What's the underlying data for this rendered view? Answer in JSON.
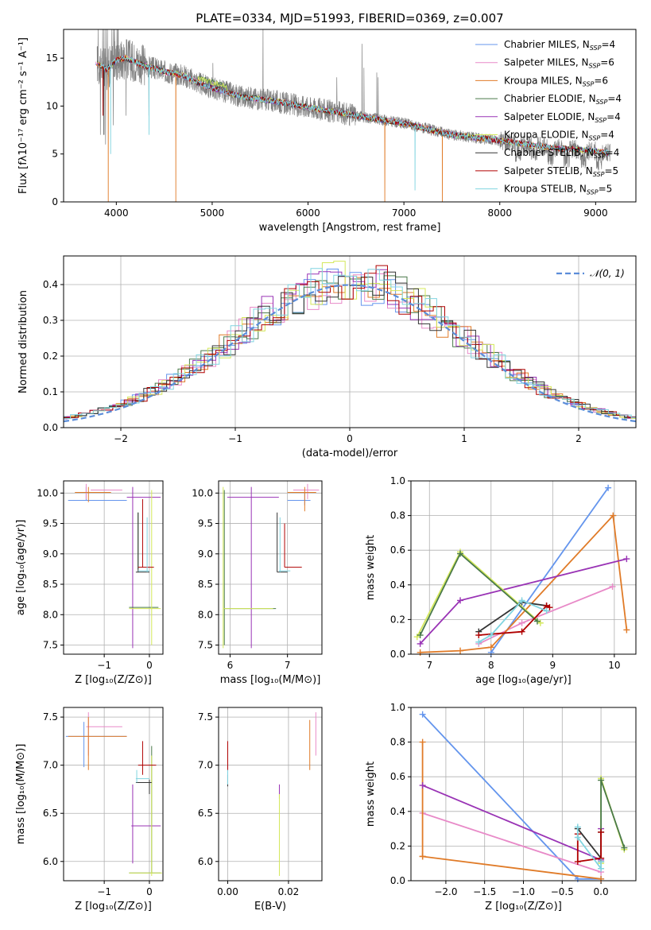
{
  "colors": {
    "chabrier_miles": "#6495ed",
    "salpeter_miles": "#e88ac8",
    "kroupa_miles": "#e07b28",
    "chabrier_elodie": "#4a7a4a",
    "salpeter_elodie": "#9933b5",
    "kroupa_elodie": "#d4e85a",
    "chabrier_stelib": "#333333",
    "salpeter_stelib": "#b00000",
    "kroupa_stelib": "#80d4e0",
    "data": "#808080",
    "normal": "#5b8dd9"
  },
  "chart_data": [
    {
      "type": "line",
      "title": "PLATE=0334, MJD=51993, FIBERID=0369, z=0.007",
      "xlabel": "wavelength [Angstrom, rest frame]",
      "ylabel": "Flux [fλ10⁻¹⁷ erg cm⁻² s⁻¹ A⁻¹]",
      "xlim": [
        3450,
        9420
      ],
      "ylim": [
        0,
        18
      ],
      "xticks": [
        "4000",
        "5000",
        "6000",
        "7000",
        "8000",
        "9000"
      ],
      "yticks": [
        "0",
        "5",
        "10",
        "15"
      ],
      "grid": false,
      "legend": "top-right",
      "legend_entries": [
        {
          "label": "Chabrier MILES, N",
          "sub": "SSP",
          "val": "=4"
        },
        {
          "label": "Salpeter MILES, N",
          "sub": "SSP",
          "val": "=6"
        },
        {
          "label": "Kroupa MILES, N",
          "sub": "SSP",
          "val": "=6"
        },
        {
          "label": "Chabrier ELODIE, N",
          "sub": "SSP",
          "val": "=4"
        },
        {
          "label": "Salpeter ELODIE, N",
          "sub": "SSP",
          "val": "=4"
        },
        {
          "label": "Kroupa ELODIE, N",
          "sub": "SSP",
          "val": "=4"
        },
        {
          "label": "Chabrier STELIB, N",
          "sub": "SSP",
          "val": "=4"
        },
        {
          "label": "Salpeter STELIB, N",
          "sub": "SSP",
          "val": "=5"
        },
        {
          "label": "Kroupa STELIB, N",
          "sub": "SSP",
          "val": "=5"
        }
      ],
      "continuum_x": [
        3800,
        3900,
        4000,
        4100,
        4300,
        4500,
        4700,
        4900,
        5100,
        5300,
        5600,
        6000,
        6500,
        7000,
        7500,
        8000,
        8500,
        9000,
        9150
      ],
      "continuum_y": [
        14.5,
        13.8,
        14.8,
        15.0,
        14.2,
        13.6,
        13.2,
        12.2,
        11.6,
        11.0,
        10.6,
        9.9,
        9.0,
        8.2,
        7.0,
        6.4,
        5.7,
        5.3,
        5.1
      ]
    },
    {
      "type": "step",
      "xlabel": "(data-model)/error",
      "ylabel": "Normed distribution",
      "xlim": [
        -2.5,
        2.5
      ],
      "ylim": [
        0,
        0.48
      ],
      "xticks": [
        "−2",
        "−1",
        "0",
        "1",
        "2"
      ],
      "yticks": [
        "0.0",
        "0.1",
        "0.2",
        "0.3",
        "0.4"
      ],
      "grid": true,
      "legend": "top-right",
      "legend_label": "𝒩(0, 1)"
    },
    {
      "type": "scatter",
      "xlabel": "Z [log₁₀(Z/Z⊙)]",
      "ylabel": "age  [log₁₀(age/yr)]",
      "xlim": [
        -1.9,
        0.3
      ],
      "ylim": [
        7.35,
        10.2
      ],
      "xticks": [
        "−1",
        "0"
      ],
      "yticks": [
        "7.5",
        "8.0",
        "8.5",
        "9.0",
        "9.5",
        "10.0"
      ]
    },
    {
      "type": "scatter",
      "xlabel": "mass [log₁₀(M/M⊙)]",
      "xlim": [
        5.8,
        7.6
      ],
      "ylim": [
        7.35,
        10.2
      ],
      "xticks": [
        "6",
        "7"
      ],
      "yticks": [
        "7.5",
        "8.0",
        "8.5",
        "9.0",
        "9.5",
        "10.0"
      ]
    },
    {
      "type": "line",
      "xlabel": "age  [log₁₀(age/yr)]",
      "ylabel": "mass weight",
      "xlim": [
        6.7,
        10.35
      ],
      "ylim": [
        0,
        1.0
      ],
      "xticks": [
        "7",
        "8",
        "9",
        "10"
      ],
      "yticks": [
        "0.0",
        "0.2",
        "0.4",
        "0.6",
        "0.8",
        "1.0"
      ],
      "series": [
        {
          "key": "chabrier_miles",
          "x": [
            8.0,
            9.9
          ],
          "y": [
            0.01,
            0.96
          ]
        },
        {
          "key": "salpeter_miles",
          "x": [
            7.8,
            8.5,
            9.97
          ],
          "y": [
            0.06,
            0.18,
            0.39
          ]
        },
        {
          "key": "kroupa_miles",
          "x": [
            6.85,
            7.5,
            8.0,
            9.98,
            10.2
          ],
          "y": [
            0.01,
            0.02,
            0.04,
            0.8,
            0.14
          ]
        },
        {
          "key": "salpeter_elodie",
          "x": [
            6.85,
            7.5,
            10.2
          ],
          "y": [
            0.06,
            0.31,
            0.55
          ]
        },
        {
          "key": "kroupa_elodie",
          "x": [
            6.8,
            7.5,
            8.8
          ],
          "y": [
            0.1,
            0.59,
            0.18
          ]
        },
        {
          "key": "chabrier_elodie",
          "x": [
            6.85,
            7.5,
            8.75
          ],
          "y": [
            0.11,
            0.58,
            0.19
          ]
        },
        {
          "key": "chabrier_stelib",
          "x": [
            7.8,
            8.5,
            8.9
          ],
          "y": [
            0.13,
            0.3,
            0.28
          ]
        },
        {
          "key": "salpeter_stelib",
          "x": [
            7.8,
            8.5,
            8.9,
            8.95
          ],
          "y": [
            0.11,
            0.13,
            0.28,
            0.27
          ]
        },
        {
          "key": "kroupa_stelib",
          "x": [
            7.8,
            8.0,
            8.5,
            8.9
          ],
          "y": [
            0.07,
            0.11,
            0.31,
            0.25
          ]
        }
      ]
    },
    {
      "type": "scatter",
      "xlabel": "Z [log₁₀(Z/Z⊙)]",
      "ylabel": "mass [log₁₀(M/M⊙)]",
      "xlim": [
        -1.9,
        0.3
      ],
      "ylim": [
        5.8,
        7.6
      ],
      "xticks": [
        "−1",
        "0"
      ],
      "yticks": [
        "6.0",
        "6.5",
        "7.0",
        "7.5"
      ]
    },
    {
      "type": "scatter",
      "xlabel": "E(B-V)",
      "xlim": [
        -0.003,
        0.031
      ],
      "ylim": [
        5.8,
        7.6
      ],
      "xticks": [
        "0.00",
        "0.02"
      ],
      "yticks": [
        "6.0",
        "6.5",
        "7.0",
        "7.5"
      ]
    },
    {
      "type": "line",
      "xlabel": "Z [log₁₀(Z/Z⊙)]",
      "ylabel": "mass weight",
      "xlim": [
        -2.45,
        0.45
      ],
      "ylim": [
        0,
        1.0
      ],
      "xticks": [
        "−2.0",
        "−1.5",
        "−1.0",
        "−0.5",
        "0.0"
      ],
      "yticks": [
        "0.0",
        "0.2",
        "0.4",
        "0.6",
        "0.8",
        "1.0"
      ],
      "series": [
        {
          "key": "chabrier_miles",
          "x": [
            -2.3,
            -0.3,
            0.0
          ],
          "y": [
            0.96,
            0.01,
            0.01
          ]
        },
        {
          "key": "salpeter_miles",
          "x": [
            -2.3,
            0.0
          ],
          "y": [
            0.39,
            0.05
          ]
        },
        {
          "key": "kroupa_miles",
          "x": [
            -2.3,
            -2.3,
            -2.3,
            0.0
          ],
          "y": [
            0.8,
            0.14,
            0.14,
            0.01
          ]
        },
        {
          "key": "salpeter_elodie",
          "x": [
            -2.3,
            0.0,
            0.0
          ],
          "y": [
            0.55,
            0.12,
            0.3
          ]
        },
        {
          "key": "kroupa_elodie",
          "x": [
            0.0,
            0.0,
            0.3
          ],
          "y": [
            0.1,
            0.59,
            0.18
          ]
        },
        {
          "key": "chabrier_elodie",
          "x": [
            0.0,
            0.0,
            0.3
          ],
          "y": [
            0.11,
            0.58,
            0.19
          ]
        },
        {
          "key": "chabrier_stelib",
          "x": [
            -0.3,
            0.0,
            0.0
          ],
          "y": [
            0.3,
            0.13,
            0.28
          ]
        },
        {
          "key": "salpeter_stelib",
          "x": [
            -0.3,
            -0.3,
            0.0,
            0.0
          ],
          "y": [
            0.27,
            0.11,
            0.13,
            0.28
          ]
        },
        {
          "key": "kroupa_stelib",
          "x": [
            -0.3,
            -0.3,
            0.0,
            0.0
          ],
          "y": [
            0.31,
            0.25,
            0.07,
            0.11
          ]
        }
      ]
    }
  ]
}
